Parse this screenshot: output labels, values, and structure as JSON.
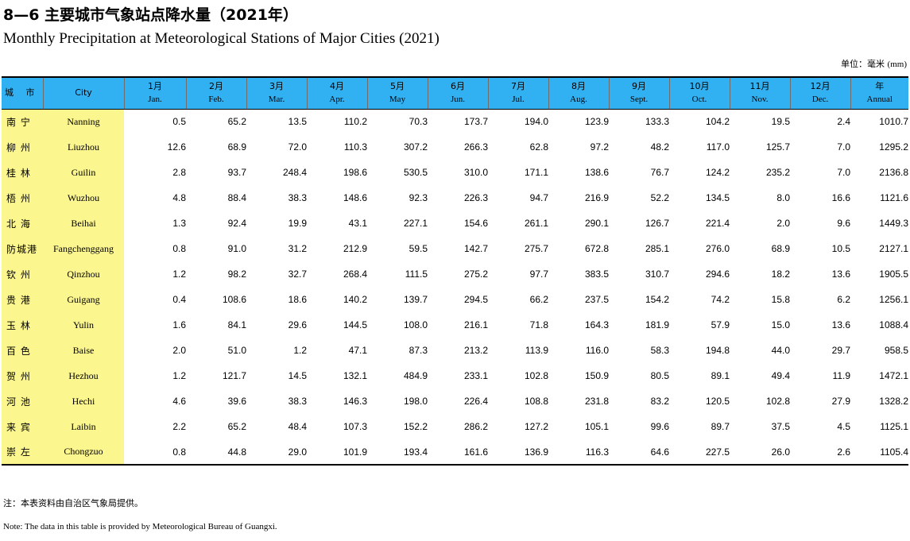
{
  "title_cn": "8—6  主要城市气象站点降水量（2021年）",
  "title_en": "Monthly Precipitation at Meteorological Stations of Major Cities (2021)",
  "unit": {
    "label": "单位：毫米",
    "code": "(mm)"
  },
  "header": {
    "city_cn": "城  市",
    "city_en": "City",
    "months": [
      {
        "cn": "1月",
        "en": "Jan."
      },
      {
        "cn": "2月",
        "en": "Feb."
      },
      {
        "cn": "3月",
        "en": "Mar."
      },
      {
        "cn": "4月",
        "en": "Apr."
      },
      {
        "cn": "5月",
        "en": "May"
      },
      {
        "cn": "6月",
        "en": "Jun."
      },
      {
        "cn": "7月",
        "en": "Jul."
      },
      {
        "cn": "8月",
        "en": "Aug."
      },
      {
        "cn": "9月",
        "en": "Sept."
      },
      {
        "cn": "10月",
        "en": "Oct."
      },
      {
        "cn": "11月",
        "en": "Nov."
      },
      {
        "cn": "12月",
        "en": "Dec."
      },
      {
        "cn": "年",
        "en": "Annual"
      }
    ]
  },
  "rows": [
    {
      "cn": "南  宁",
      "en": "Nanning",
      "values": [
        "0.5",
        "65.2",
        "13.5",
        "110.2",
        "70.3",
        "173.7",
        "194.0",
        "123.9",
        "133.3",
        "104.2",
        "19.5",
        "2.4",
        "1010.7"
      ]
    },
    {
      "cn": "柳  州",
      "en": "Liuzhou",
      "values": [
        "12.6",
        "68.9",
        "72.0",
        "110.3",
        "307.2",
        "266.3",
        "62.8",
        "97.2",
        "48.2",
        "117.0",
        "125.7",
        "7.0",
        "1295.2"
      ]
    },
    {
      "cn": "桂  林",
      "en": "Guilin",
      "values": [
        "2.8",
        "93.7",
        "248.4",
        "198.6",
        "530.5",
        "310.0",
        "171.1",
        "138.6",
        "76.7",
        "124.2",
        "235.2",
        "7.0",
        "2136.8"
      ]
    },
    {
      "cn": "梧  州",
      "en": "Wuzhou",
      "values": [
        "4.8",
        "88.4",
        "38.3",
        "148.6",
        "92.3",
        "226.3",
        "94.7",
        "216.9",
        "52.2",
        "134.5",
        "8.0",
        "16.6",
        "1121.6"
      ]
    },
    {
      "cn": "北  海",
      "en": "Beihai",
      "values": [
        "1.3",
        "92.4",
        "19.9",
        "43.1",
        "227.1",
        "154.6",
        "261.1",
        "290.1",
        "126.7",
        "221.4",
        "2.0",
        "9.6",
        "1449.3"
      ]
    },
    {
      "cn": "防城港",
      "en": "Fangchenggang",
      "values": [
        "0.8",
        "91.0",
        "31.2",
        "212.9",
        "59.5",
        "142.7",
        "275.7",
        "672.8",
        "285.1",
        "276.0",
        "68.9",
        "10.5",
        "2127.1"
      ]
    },
    {
      "cn": "钦  州",
      "en": "Qinzhou",
      "values": [
        "1.2",
        "98.2",
        "32.7",
        "268.4",
        "111.5",
        "275.2",
        "97.7",
        "383.5",
        "310.7",
        "294.6",
        "18.2",
        "13.6",
        "1905.5"
      ]
    },
    {
      "cn": "贵  港",
      "en": "Guigang",
      "values": [
        "0.4",
        "108.6",
        "18.6",
        "140.2",
        "139.7",
        "294.5",
        "66.2",
        "237.5",
        "154.2",
        "74.2",
        "15.8",
        "6.2",
        "1256.1"
      ]
    },
    {
      "cn": "玉  林",
      "en": "Yulin",
      "values": [
        "1.6",
        "84.1",
        "29.6",
        "144.5",
        "108.0",
        "216.1",
        "71.8",
        "164.3",
        "181.9",
        "57.9",
        "15.0",
        "13.6",
        "1088.4"
      ]
    },
    {
      "cn": "百  色",
      "en": "Baise",
      "values": [
        "2.0",
        "51.0",
        "1.2",
        "47.1",
        "87.3",
        "213.2",
        "113.9",
        "116.0",
        "58.3",
        "194.8",
        "44.0",
        "29.7",
        "958.5"
      ]
    },
    {
      "cn": "贺  州",
      "en": "Hezhou",
      "values": [
        "1.2",
        "121.7",
        "14.5",
        "132.1",
        "484.9",
        "233.1",
        "102.8",
        "150.9",
        "80.5",
        "89.1",
        "49.4",
        "11.9",
        "1472.1"
      ]
    },
    {
      "cn": "河  池",
      "en": "Hechi",
      "values": [
        "4.6",
        "39.6",
        "38.3",
        "146.3",
        "198.0",
        "226.4",
        "108.8",
        "231.8",
        "83.2",
        "120.5",
        "102.8",
        "27.9",
        "1328.2"
      ]
    },
    {
      "cn": "来  宾",
      "en": "Laibin",
      "values": [
        "2.2",
        "65.2",
        "48.4",
        "107.3",
        "152.2",
        "286.2",
        "127.2",
        "105.1",
        "99.6",
        "89.7",
        "37.5",
        "4.5",
        "1125.1"
      ]
    },
    {
      "cn": "崇  左",
      "en": "Chongzuo",
      "values": [
        "0.8",
        "44.8",
        "29.0",
        "101.9",
        "193.4",
        "161.6",
        "136.9",
        "116.3",
        "64.6",
        "227.5",
        "26.0",
        "2.6",
        "1105.4"
      ]
    }
  ],
  "note_cn": "注：本表资料由自治区气象局提供。",
  "note_en": "Note: The data in this table is provided by Meteorological Bureau of Guangxi.",
  "colors": {
    "header_bg": "#32b1f2",
    "city_bg": "#fcf68e"
  }
}
